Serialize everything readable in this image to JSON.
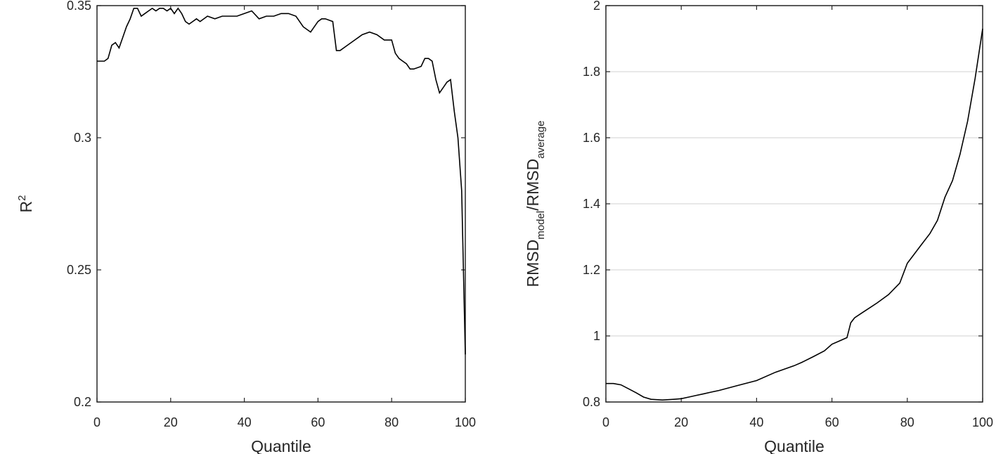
{
  "chart_data": [
    {
      "type": "line",
      "xlabel": "Quantile",
      "ylabel": {
        "main": "R",
        "superscript": "2"
      },
      "xlim": [
        0,
        100
      ],
      "ylim": [
        0.2,
        0.35
      ],
      "xticks": [
        "0",
        "20",
        "40",
        "60",
        "80",
        "100"
      ],
      "yticks": [
        "0.2",
        "0.25",
        "0.3",
        "0.35"
      ],
      "grid": false,
      "series": [
        {
          "x": [
            0,
            2,
            3,
            4,
            5,
            6,
            7,
            8,
            9,
            10,
            11,
            12,
            13,
            14,
            15,
            16,
            17,
            18,
            19,
            20,
            21,
            22,
            23,
            24,
            25,
            26,
            27,
            28,
            30,
            32,
            34,
            36,
            38,
            40,
            42,
            44,
            46,
            48,
            50,
            52,
            54,
            56,
            58,
            60,
            61,
            62,
            64,
            65,
            66,
            68,
            70,
            72,
            74,
            76,
            78,
            80,
            81,
            82,
            83,
            84,
            85,
            86,
            88,
            89,
            90,
            91,
            92,
            93,
            94,
            95,
            96,
            97,
            98,
            99,
            100
          ],
          "y": [
            0.329,
            0.329,
            0.33,
            0.335,
            0.336,
            0.334,
            0.338,
            0.342,
            0.345,
            0.349,
            0.349,
            0.346,
            0.347,
            0.348,
            0.349,
            0.348,
            0.349,
            0.349,
            0.348,
            0.349,
            0.347,
            0.349,
            0.347,
            0.344,
            0.343,
            0.344,
            0.345,
            0.344,
            0.346,
            0.345,
            0.346,
            0.346,
            0.346,
            0.347,
            0.348,
            0.345,
            0.346,
            0.346,
            0.347,
            0.347,
            0.346,
            0.342,
            0.34,
            0.344,
            0.345,
            0.345,
            0.344,
            0.333,
            0.333,
            0.335,
            0.337,
            0.339,
            0.34,
            0.339,
            0.337,
            0.337,
            0.332,
            0.33,
            0.329,
            0.328,
            0.326,
            0.326,
            0.327,
            0.33,
            0.33,
            0.329,
            0.322,
            0.317,
            0.319,
            0.321,
            0.322,
            0.31,
            0.3,
            0.28,
            0.218
          ]
        }
      ]
    },
    {
      "type": "line",
      "xlabel": "Quantile",
      "ylabel": {
        "main": "RMSD",
        "sub1": "model",
        "sep": "/RMSD",
        "sub2": "average"
      },
      "xlim": [
        0,
        100
      ],
      "ylim": [
        0.8,
        2
      ],
      "xticks": [
        "0",
        "20",
        "40",
        "60",
        "80",
        "100"
      ],
      "yticks": [
        "0.8",
        "1",
        "1.2",
        "1.4",
        "1.6",
        "1.8",
        "2"
      ],
      "grid": true,
      "series": [
        {
          "x": [
            0,
            2,
            4,
            6,
            8,
            10,
            12,
            15,
            18,
            20,
            22,
            24,
            26,
            28,
            30,
            35,
            40,
            45,
            50,
            52,
            55,
            58,
            60,
            62,
            64,
            65,
            66,
            68,
            70,
            72,
            75,
            78,
            80,
            82,
            84,
            86,
            88,
            90,
            92,
            94,
            96,
            98,
            100
          ],
          "y": [
            0.856,
            0.856,
            0.852,
            0.84,
            0.828,
            0.815,
            0.808,
            0.806,
            0.808,
            0.81,
            0.815,
            0.82,
            0.825,
            0.83,
            0.835,
            0.85,
            0.865,
            0.89,
            0.91,
            0.92,
            0.937,
            0.955,
            0.975,
            0.985,
            0.995,
            1.04,
            1.055,
            1.07,
            1.085,
            1.1,
            1.125,
            1.16,
            1.22,
            1.25,
            1.28,
            1.31,
            1.35,
            1.42,
            1.47,
            1.55,
            1.65,
            1.78,
            1.93
          ]
        }
      ]
    }
  ]
}
